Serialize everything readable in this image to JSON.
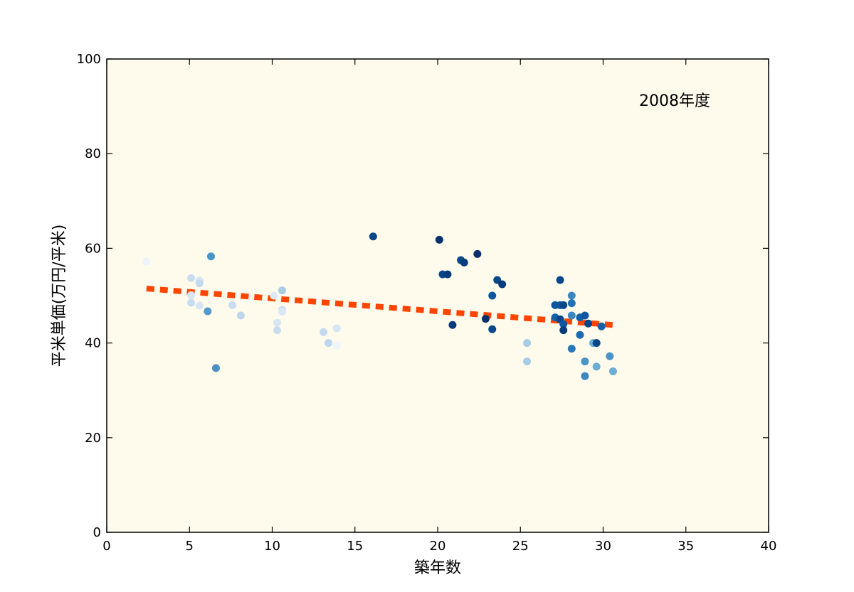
{
  "chart_data": {
    "type": "scatter",
    "title": "",
    "annotation": "2008年度",
    "xlabel": "築年数",
    "ylabel": "平米単価(万円/平米)",
    "xlim": [
      0,
      40
    ],
    "ylim": [
      0,
      100
    ],
    "xticks": [
      0,
      5,
      10,
      15,
      20,
      25,
      30,
      35,
      40
    ],
    "yticks": [
      0,
      20,
      40,
      60,
      80,
      100
    ],
    "grid": false,
    "plot_background": "#fefaec",
    "trend_color": "#ff4500",
    "trend_line": {
      "x": [
        2.4,
        30.6
      ],
      "y": [
        51.5,
        43.8
      ]
    },
    "points": [
      {
        "x": 2.4,
        "y": 57.2,
        "color": "#eef4fb"
      },
      {
        "x": 5.1,
        "y": 53.7,
        "color": "#c9ddf0"
      },
      {
        "x": 5.6,
        "y": 53.2,
        "color": "#d6e6f4"
      },
      {
        "x": 5.6,
        "y": 52.6,
        "color": "#c4daee"
      },
      {
        "x": 5.1,
        "y": 50.1,
        "color": "#d6e6f4"
      },
      {
        "x": 5.1,
        "y": 48.5,
        "color": "#c9ddf0"
      },
      {
        "x": 5.6,
        "y": 47.9,
        "color": "#d6e6f4"
      },
      {
        "x": 6.1,
        "y": 46.7,
        "color": "#5399cb"
      },
      {
        "x": 6.3,
        "y": 58.3,
        "color": "#4a95c8"
      },
      {
        "x": 6.6,
        "y": 34.7,
        "color": "#4a8fc4"
      },
      {
        "x": 7.6,
        "y": 48.0,
        "color": "#c9ddf0"
      },
      {
        "x": 8.1,
        "y": 45.8,
        "color": "#bcd6ec"
      },
      {
        "x": 10.1,
        "y": 50.0,
        "color": "#dbe9f6"
      },
      {
        "x": 10.3,
        "y": 44.3,
        "color": "#d6e6f4"
      },
      {
        "x": 10.3,
        "y": 42.7,
        "color": "#c9ddf0"
      },
      {
        "x": 10.6,
        "y": 51.1,
        "color": "#a9cce5"
      },
      {
        "x": 10.6,
        "y": 47.0,
        "color": "#c9ddf0"
      },
      {
        "x": 10.6,
        "y": 46.6,
        "color": "#dbe9f6"
      },
      {
        "x": 13.1,
        "y": 42.3,
        "color": "#c4daee"
      },
      {
        "x": 13.4,
        "y": 40.0,
        "color": "#bcd6ec"
      },
      {
        "x": 13.9,
        "y": 43.1,
        "color": "#d6e6f4"
      },
      {
        "x": 13.9,
        "y": 39.5,
        "color": "#eef4fb"
      },
      {
        "x": 16.1,
        "y": 62.5,
        "color": "#08468a"
      },
      {
        "x": 20.1,
        "y": 61.8,
        "color": "#08306b"
      },
      {
        "x": 20.3,
        "y": 54.5,
        "color": "#08468a"
      },
      {
        "x": 20.6,
        "y": 54.5,
        "color": "#083b7c"
      },
      {
        "x": 20.9,
        "y": 43.8,
        "color": "#083b7c"
      },
      {
        "x": 21.4,
        "y": 57.5,
        "color": "#0a4a90"
      },
      {
        "x": 21.6,
        "y": 57.0,
        "color": "#083b7c"
      },
      {
        "x": 22.4,
        "y": 58.8,
        "color": "#08306b"
      },
      {
        "x": 22.9,
        "y": 45.1,
        "color": "#08306b"
      },
      {
        "x": 23.3,
        "y": 50.0,
        "color": "#0d57a1"
      },
      {
        "x": 23.3,
        "y": 42.9,
        "color": "#08468a"
      },
      {
        "x": 23.6,
        "y": 53.3,
        "color": "#08468a"
      },
      {
        "x": 23.9,
        "y": 52.4,
        "color": "#083b7c"
      },
      {
        "x": 25.4,
        "y": 40.0,
        "color": "#a9cce5"
      },
      {
        "x": 25.4,
        "y": 36.1,
        "color": "#a9cce5"
      },
      {
        "x": 27.1,
        "y": 48.0,
        "color": "#0d57a1"
      },
      {
        "x": 27.1,
        "y": 45.4,
        "color": "#1561a9"
      },
      {
        "x": 27.4,
        "y": 53.3,
        "color": "#08468a"
      },
      {
        "x": 27.4,
        "y": 48.0,
        "color": "#0d57a1"
      },
      {
        "x": 27.4,
        "y": 45.0,
        "color": "#08468a"
      },
      {
        "x": 27.6,
        "y": 48.0,
        "color": "#08468a"
      },
      {
        "x": 27.6,
        "y": 44.0,
        "color": "#0d57a1"
      },
      {
        "x": 27.6,
        "y": 42.7,
        "color": "#083b7c"
      },
      {
        "x": 28.1,
        "y": 50.0,
        "color": "#3c87c0"
      },
      {
        "x": 28.1,
        "y": 48.4,
        "color": "#2171b5"
      },
      {
        "x": 28.1,
        "y": 45.8,
        "color": "#3c87c0"
      },
      {
        "x": 28.1,
        "y": 38.8,
        "color": "#2878b8"
      },
      {
        "x": 28.6,
        "y": 45.4,
        "color": "#1561a9"
      },
      {
        "x": 28.6,
        "y": 41.7,
        "color": "#1c6ab0"
      },
      {
        "x": 28.9,
        "y": 45.8,
        "color": "#0d57a1"
      },
      {
        "x": 28.9,
        "y": 36.1,
        "color": "#4a95c8"
      },
      {
        "x": 28.9,
        "y": 33.0,
        "color": "#3c87c0"
      },
      {
        "x": 29.1,
        "y": 44.1,
        "color": "#08468a"
      },
      {
        "x": 29.4,
        "y": 40.0,
        "color": "#6aaed6"
      },
      {
        "x": 29.6,
        "y": 40.0,
        "color": "#08468a"
      },
      {
        "x": 29.6,
        "y": 35.0,
        "color": "#6aaed6"
      },
      {
        "x": 29.9,
        "y": 43.5,
        "color": "#1561a9"
      },
      {
        "x": 30.4,
        "y": 37.2,
        "color": "#4a95c8"
      },
      {
        "x": 30.6,
        "y": 34.0,
        "color": "#6aaed6"
      }
    ]
  }
}
